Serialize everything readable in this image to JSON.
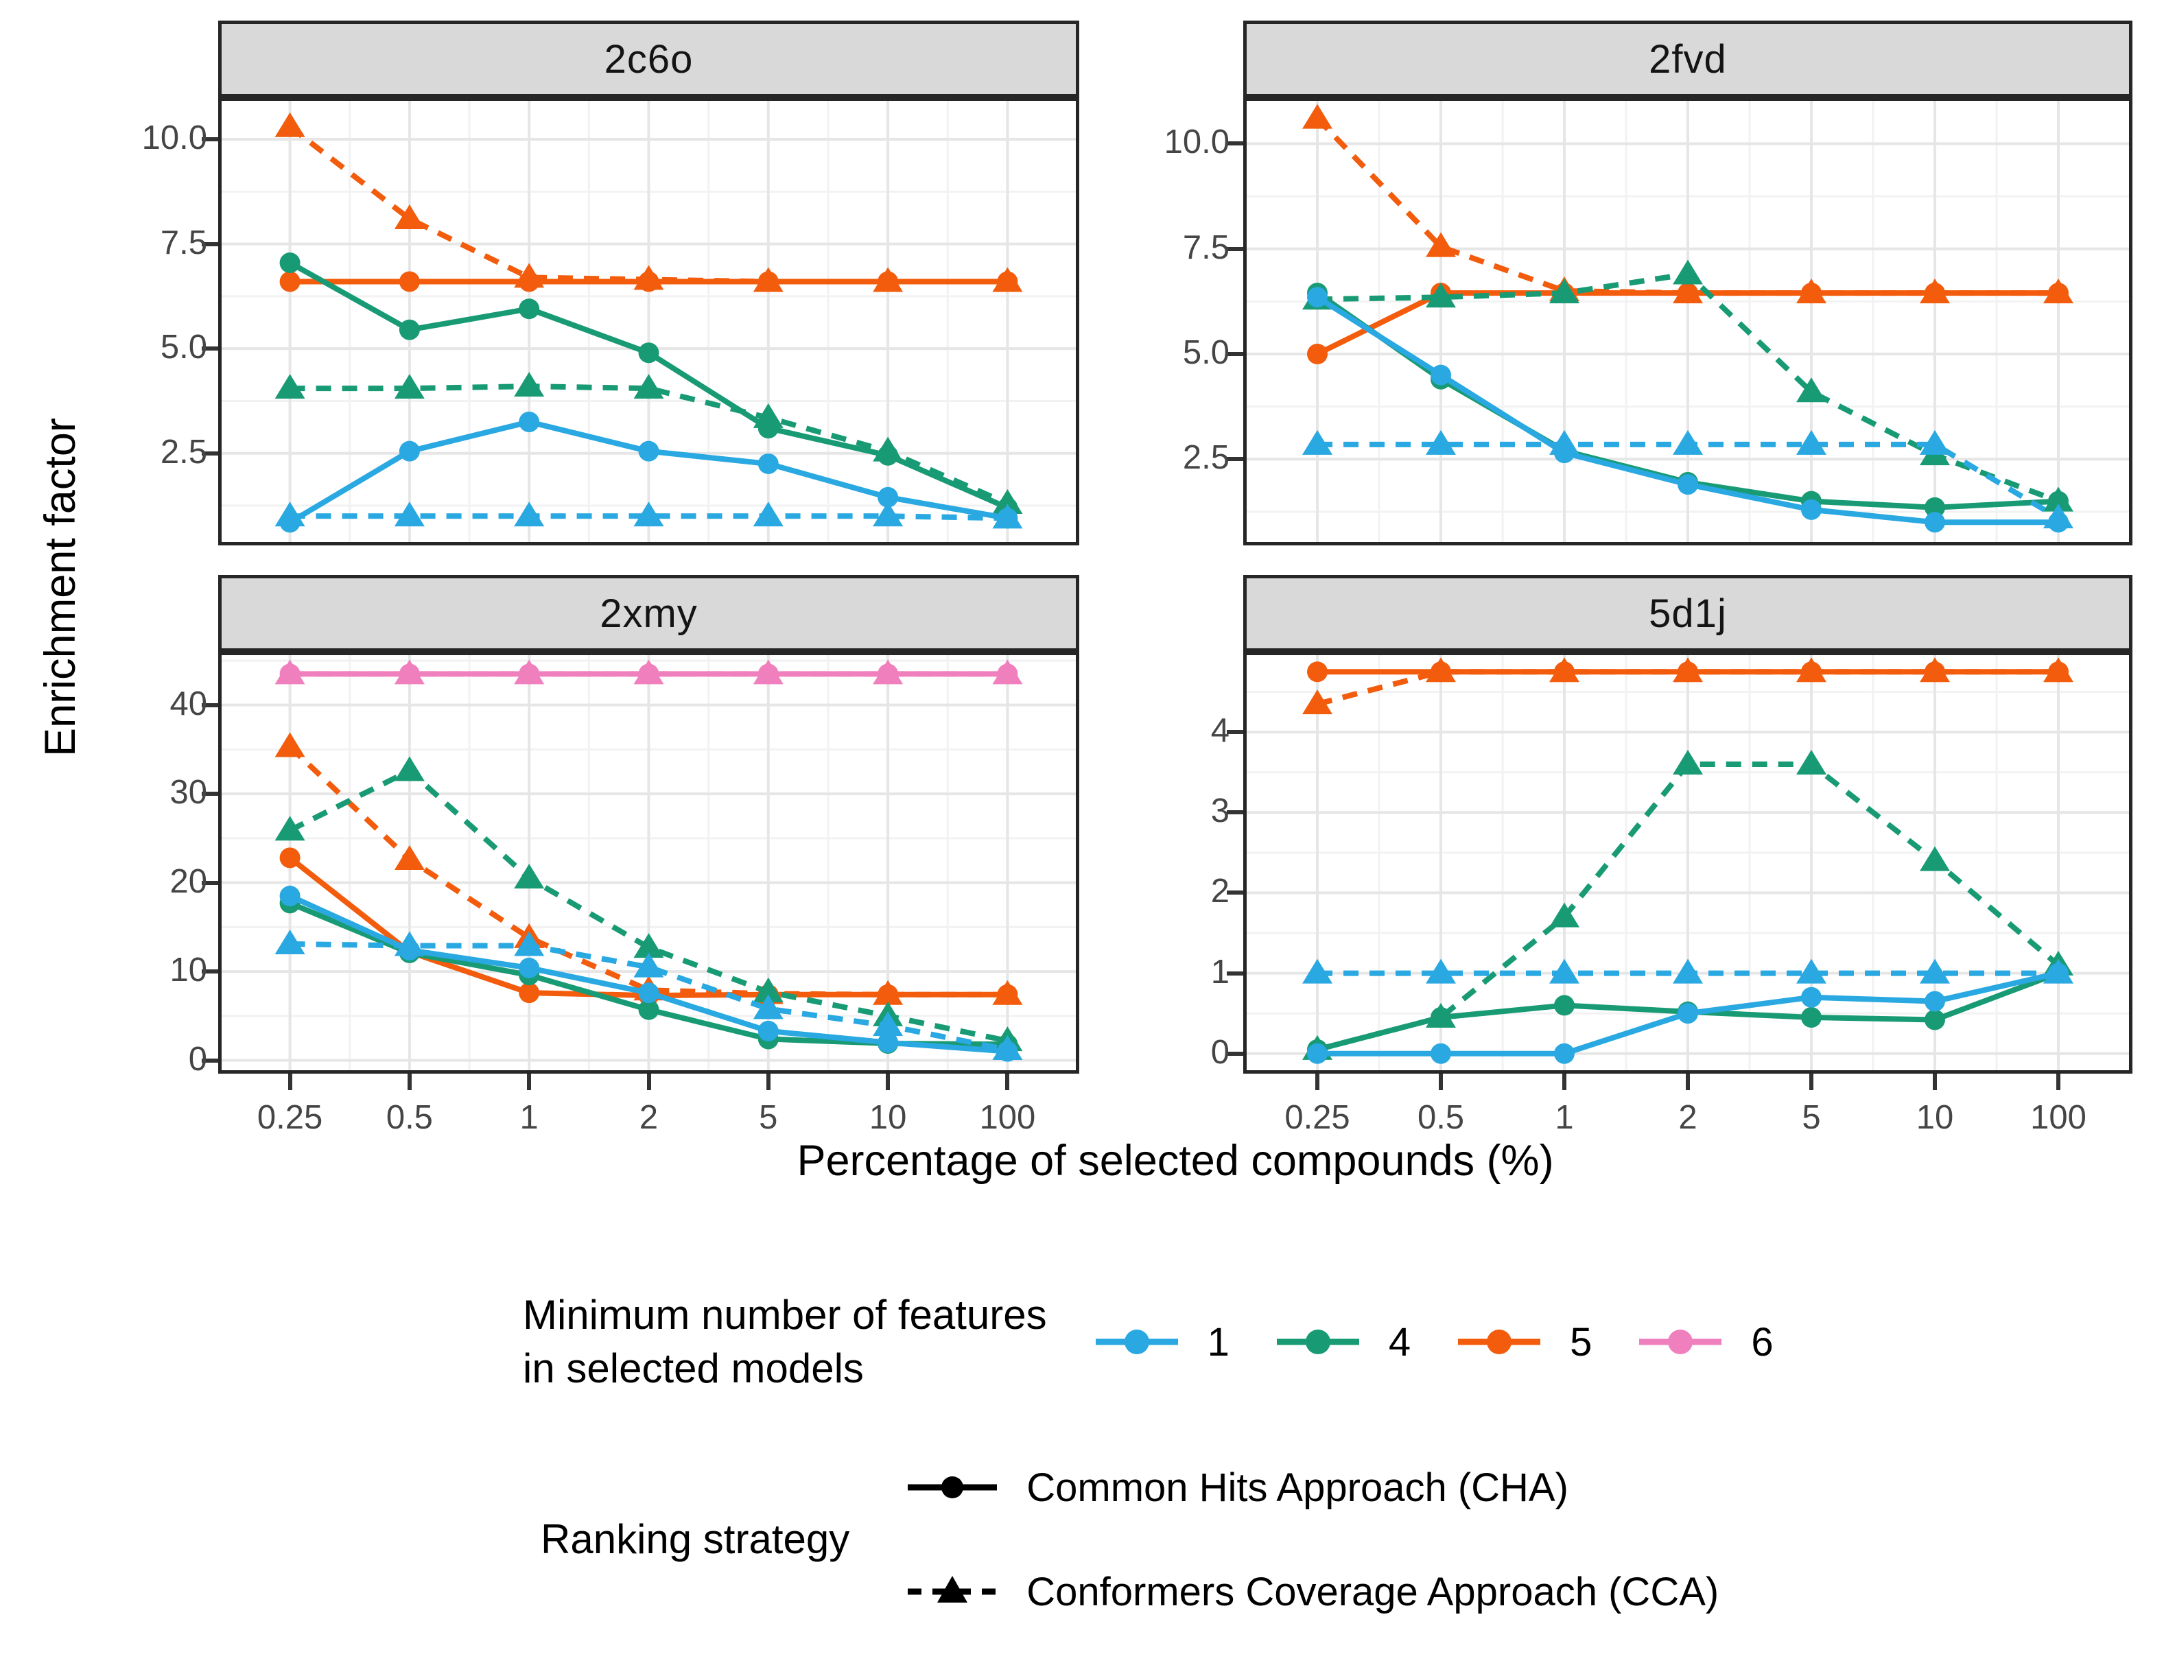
{
  "chart_data": {
    "type": "line",
    "xlabel": "Percentage of selected compounds (%)",
    "ylabel": "Enrichment factor",
    "categories": [
      "0.25",
      "0.5",
      "1",
      "2",
      "5",
      "10",
      "100"
    ],
    "colors": {
      "1": "#29A8E1",
      "4": "#189B74",
      "5": "#F25C0C",
      "6": "#F080BD"
    },
    "strategy_styles": {
      "CHA": {
        "line": "solid",
        "marker": "circle"
      },
      "CCA": {
        "line": "dashed",
        "marker": "triangle"
      }
    },
    "facets": [
      {
        "title": "2c6o",
        "ylim": [
          0.3,
          11.0
        ],
        "yticks": [
          2.5,
          5.0,
          7.5,
          10.0
        ],
        "ytick_labels": [
          "2.5",
          "5.0",
          "7.5",
          "10.0"
        ],
        "series": [
          {
            "feature": "5",
            "strategy": "CHA",
            "values": [
              6.6,
              6.6,
              6.6,
              6.6,
              6.6,
              6.6,
              6.6
            ]
          },
          {
            "feature": "5",
            "strategy": "CCA",
            "values": [
              10.3,
              8.1,
              6.7,
              6.65,
              6.6,
              6.6,
              6.6
            ]
          },
          {
            "feature": "4",
            "strategy": "CHA",
            "values": [
              7.05,
              5.45,
              5.95,
              4.9,
              3.1,
              2.45,
              1.2
            ]
          },
          {
            "feature": "4",
            "strategy": "CCA",
            "values": [
              4.05,
              4.05,
              4.1,
              4.05,
              3.35,
              2.55,
              1.3
            ]
          },
          {
            "feature": "1",
            "strategy": "CHA",
            "values": [
              0.85,
              2.55,
              3.25,
              2.55,
              2.25,
              1.45,
              0.95
            ]
          },
          {
            "feature": "1",
            "strategy": "CCA",
            "values": [
              1.0,
              1.0,
              1.0,
              1.0,
              1.0,
              1.0,
              0.95
            ]
          }
        ]
      },
      {
        "title": "2fvd",
        "ylim": [
          0.45,
          11.1
        ],
        "yticks": [
          2.5,
          5.0,
          7.5,
          10.0
        ],
        "ytick_labels": [
          "2.5",
          "5.0",
          "7.5",
          "10.0"
        ],
        "series": [
          {
            "feature": "5",
            "strategy": "CHA",
            "values": [
              5.0,
              6.45,
              6.45,
              6.45,
              6.45,
              6.45,
              6.45
            ]
          },
          {
            "feature": "5",
            "strategy": "CCA",
            "values": [
              10.6,
              7.55,
              6.5,
              6.45,
              6.45,
              6.45,
              6.45
            ]
          },
          {
            "feature": "4",
            "strategy": "CHA",
            "values": [
              6.45,
              4.4,
              2.7,
              1.95,
              1.5,
              1.35,
              1.5
            ]
          },
          {
            "feature": "4",
            "strategy": "CCA",
            "values": [
              6.3,
              6.35,
              6.45,
              6.9,
              4.1,
              2.6,
              1.5
            ]
          },
          {
            "feature": "1",
            "strategy": "CHA",
            "values": [
              6.35,
              4.5,
              2.65,
              1.9,
              1.3,
              1.0,
              1.0
            ]
          },
          {
            "feature": "1",
            "strategy": "CCA",
            "values": [
              2.85,
              2.85,
              2.85,
              2.85,
              2.85,
              2.85,
              1.1
            ]
          }
        ]
      },
      {
        "title": "2xmy",
        "ylim": [
          -1.5,
          46.0
        ],
        "yticks": [
          0,
          10,
          20,
          30,
          40
        ],
        "ytick_labels": [
          "0",
          "10",
          "20",
          "30",
          "40"
        ],
        "series": [
          {
            "feature": "6",
            "strategy": "CHA",
            "values": [
              43.5,
              43.5,
              43.5,
              43.5,
              43.5,
              43.5,
              43.5
            ]
          },
          {
            "feature": "6",
            "strategy": "CCA",
            "values": [
              43.5,
              43.5,
              43.5,
              43.5,
              43.5,
              43.5,
              43.5
            ]
          },
          {
            "feature": "5",
            "strategy": "CHA",
            "values": [
              22.8,
              12.2,
              7.6,
              7.3,
              7.4,
              7.4,
              7.4
            ]
          },
          {
            "feature": "5",
            "strategy": "CCA",
            "values": [
              35.3,
              22.6,
              13.8,
              7.9,
              7.5,
              7.4,
              7.4
            ]
          },
          {
            "feature": "4",
            "strategy": "CHA",
            "values": [
              17.7,
              12.1,
              9.6,
              5.7,
              2.4,
              1.9,
              1.8
            ]
          },
          {
            "feature": "4",
            "strategy": "CCA",
            "values": [
              25.9,
              32.6,
              20.5,
              12.7,
              7.7,
              5.0,
              2.2
            ]
          },
          {
            "feature": "1",
            "strategy": "CHA",
            "values": [
              18.5,
              12.4,
              10.4,
              7.6,
              3.3,
              2.0,
              1.0
            ]
          },
          {
            "feature": "1",
            "strategy": "CCA",
            "values": [
              13.1,
              12.9,
              12.9,
              10.5,
              5.8,
              3.9,
              1.2
            ]
          }
        ]
      },
      {
        "title": "5d1j",
        "ylim": [
          -0.25,
          5.0
        ],
        "yticks": [
          0,
          1,
          2,
          3,
          4
        ],
        "ytick_labels": [
          "0",
          "1",
          "2",
          "3",
          "4"
        ],
        "series": [
          {
            "feature": "5",
            "strategy": "CHA",
            "values": [
              4.75,
              4.75,
              4.75,
              4.75,
              4.75,
              4.75,
              4.75
            ]
          },
          {
            "feature": "5",
            "strategy": "CCA",
            "values": [
              4.35,
              4.75,
              4.75,
              4.75,
              4.75,
              4.75,
              4.75
            ]
          },
          {
            "feature": "4",
            "strategy": "CHA",
            "values": [
              0.05,
              0.45,
              0.6,
              0.52,
              0.45,
              0.42,
              1.0
            ]
          },
          {
            "feature": "4",
            "strategy": "CCA",
            "values": [
              0.05,
              0.45,
              1.7,
              3.6,
              3.6,
              2.4,
              1.1
            ]
          },
          {
            "feature": "1",
            "strategy": "CHA",
            "values": [
              0.0,
              0.0,
              0.0,
              0.5,
              0.7,
              0.65,
              1.0
            ]
          },
          {
            "feature": "1",
            "strategy": "CCA",
            "values": [
              1.0,
              1.0,
              1.0,
              1.0,
              1.0,
              1.0,
              1.0
            ]
          }
        ]
      }
    ],
    "grid": {
      "major_color": "#e6e6e6",
      "minor_color": "#f2f2f2"
    },
    "legend_position": "bottom"
  },
  "legend_features": {
    "title_line1": "Minimum number of features",
    "title_line2": "in selected models",
    "items": [
      {
        "label": "1",
        "color": "#29A8E1"
      },
      {
        "label": "4",
        "color": "#189B74"
      },
      {
        "label": "5",
        "color": "#F25C0C"
      },
      {
        "label": "6",
        "color": "#F080BD"
      }
    ]
  },
  "legend_ranking": {
    "title": "Ranking strategy",
    "items": [
      {
        "label": "Common Hits Approach (CHA)",
        "line": "solid",
        "marker": "circle"
      },
      {
        "label": "Conformers Coverage Approach (CCA)",
        "line": "dashed",
        "marker": "triangle"
      }
    ]
  }
}
